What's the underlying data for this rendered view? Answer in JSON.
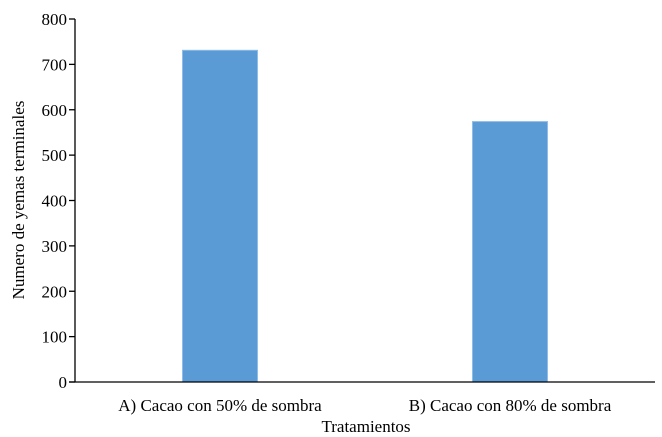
{
  "chart_data": {
    "type": "bar",
    "title": "",
    "xlabel": "Tratamientos",
    "ylabel": "Numero de yemas terminales",
    "categories": [
      "A) Cacao con 50% de sombra",
      "B) Cacao con 80% de sombra"
    ],
    "values": [
      731,
      574
    ],
    "ylim": [
      0,
      800
    ],
    "yticks": [
      "0",
      "100",
      "200",
      "300",
      "400",
      "500",
      "600",
      "700",
      "800"
    ],
    "grid": false,
    "legend": "none",
    "colors": {
      "bar_fill": "#5b9bd5",
      "bar_edge": "#8fbde8",
      "axis": "#000000"
    }
  }
}
